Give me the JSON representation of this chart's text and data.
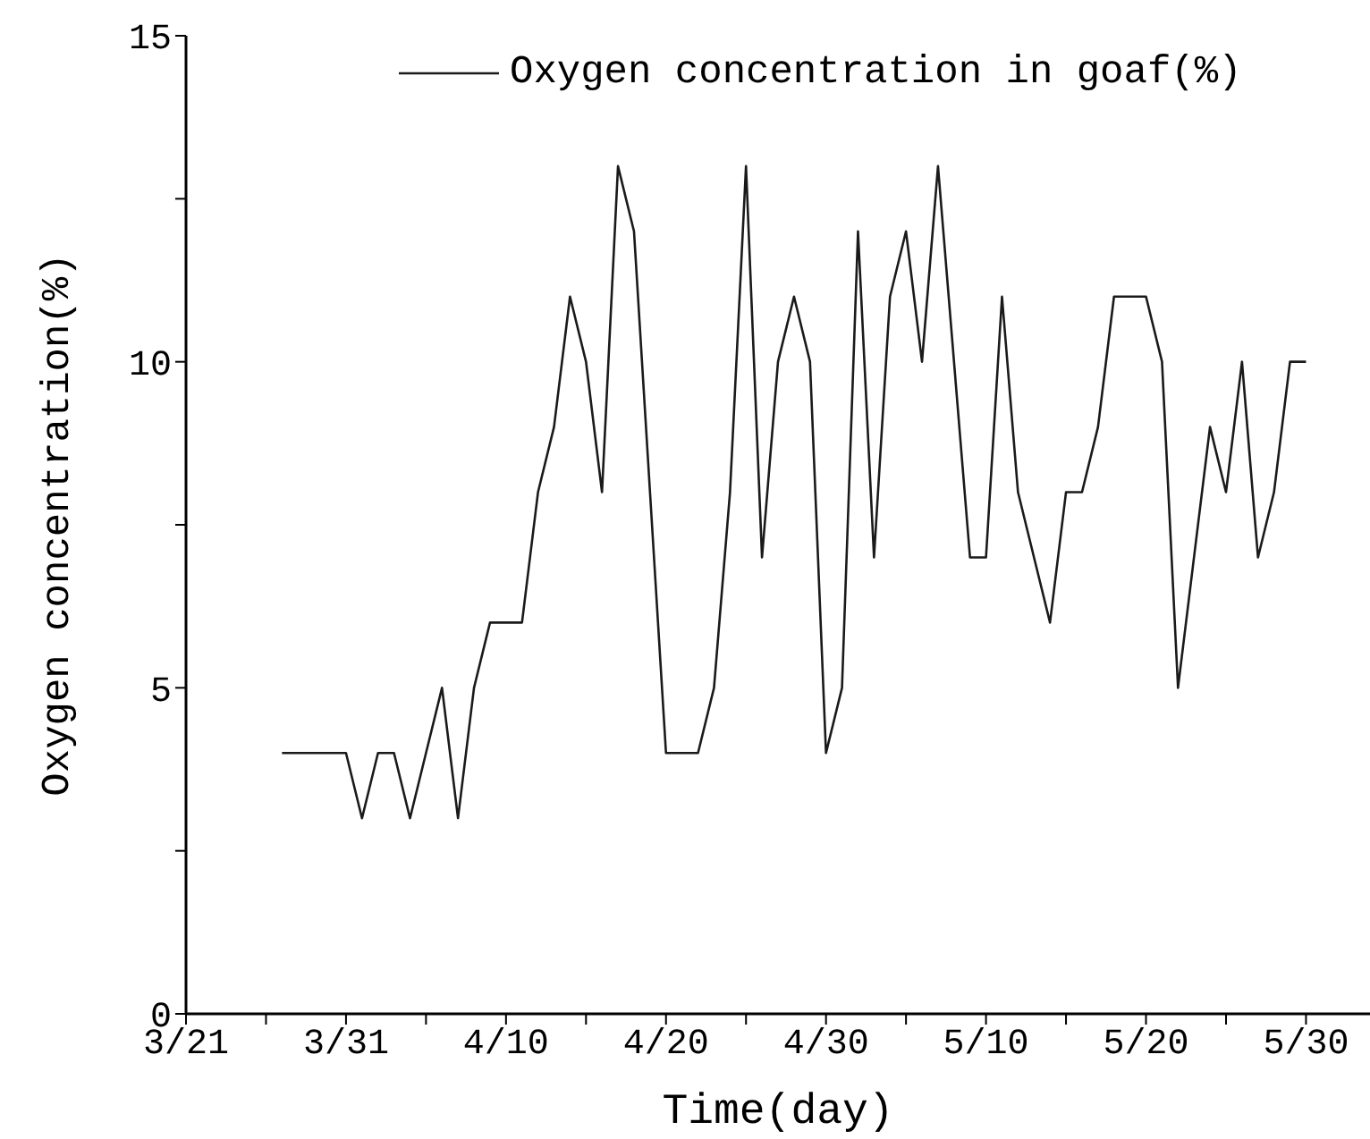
{
  "chart_data": {
    "type": "line",
    "xlabel": "Time(day)",
    "ylabel": "Oxygen concentration(%)",
    "x": [
      "--03-27",
      "--03-28",
      "--03-29",
      "--03-30",
      "--03-31",
      "--04-01",
      "--04-02",
      "--04-03",
      "--04-04",
      "--04-05",
      "--04-06",
      "--04-07",
      "--04-08",
      "--04-09",
      "--04-10",
      "--04-11",
      "--04-12",
      "--04-13",
      "--04-14",
      "--04-15",
      "--04-16",
      "--04-17",
      "--04-18",
      "--04-19",
      "--04-20",
      "--04-21",
      "--04-22",
      "--04-23",
      "--04-24",
      "--04-25",
      "--04-26",
      "--04-27",
      "--04-28",
      "--04-29",
      "--04-30",
      "--05-01",
      "--05-02",
      "--05-03",
      "--05-04",
      "--05-05",
      "--05-06",
      "--05-07",
      "--05-08",
      "--05-09",
      "--05-10",
      "--05-11",
      "--05-12",
      "--05-13",
      "--05-14",
      "--05-15",
      "--05-16",
      "--05-17",
      "--05-18",
      "--05-19",
      "--05-20",
      "--05-21",
      "--05-22",
      "--05-23",
      "--05-24",
      "--05-25",
      "--05-26",
      "--05-27",
      "--05-28",
      "--05-29",
      "--05-30"
    ],
    "series": [
      {
        "name": "Oxygen concentration in goaf(%)",
        "color": "#1a1a1a",
        "values": [
          4,
          4,
          4,
          4,
          4,
          3,
          4,
          4,
          3,
          4,
          5,
          3,
          5,
          6,
          6,
          6,
          8,
          9,
          11,
          10,
          8,
          13,
          12,
          8,
          4,
          4,
          4,
          5,
          8,
          13,
          7,
          10,
          11,
          10,
          4,
          5,
          12,
          7,
          11,
          12,
          10,
          13,
          10,
          7,
          7,
          11,
          8,
          7,
          6,
          8,
          8,
          9,
          11,
          11,
          11,
          10,
          5,
          7,
          9,
          8,
          10,
          7,
          8,
          10,
          10
        ]
      }
    ],
    "xlim": [
      "--03-21",
      "--06-03"
    ],
    "xticks": [
      {
        "value": "--03-21",
        "label": "3/21"
      },
      {
        "value": "--03-26",
        "label": null
      },
      {
        "value": "--03-31",
        "label": "3/31"
      },
      {
        "value": "--04-05",
        "label": null
      },
      {
        "value": "--04-10",
        "label": "4/10"
      },
      {
        "value": "--04-15",
        "label": null
      },
      {
        "value": "--04-20",
        "label": "4/20"
      },
      {
        "value": "--04-25",
        "label": null
      },
      {
        "value": "--04-30",
        "label": "4/30"
      },
      {
        "value": "--05-05",
        "label": null
      },
      {
        "value": "--05-10",
        "label": "5/10"
      },
      {
        "value": "--05-15",
        "label": null
      },
      {
        "value": "--05-20",
        "label": "5/20"
      },
      {
        "value": "--05-25",
        "label": null
      },
      {
        "value": "--05-30",
        "label": "5/30"
      }
    ],
    "ylim": [
      0,
      15
    ],
    "yticks": [
      0,
      {
        "value": 2.5,
        "label": null
      },
      5,
      {
        "value": 7.5,
        "label": null
      },
      10,
      {
        "value": 12.5,
        "label": null
      },
      15
    ],
    "grid": false,
    "legend": "top right",
    "marker": "none",
    "line_style": "solid"
  }
}
